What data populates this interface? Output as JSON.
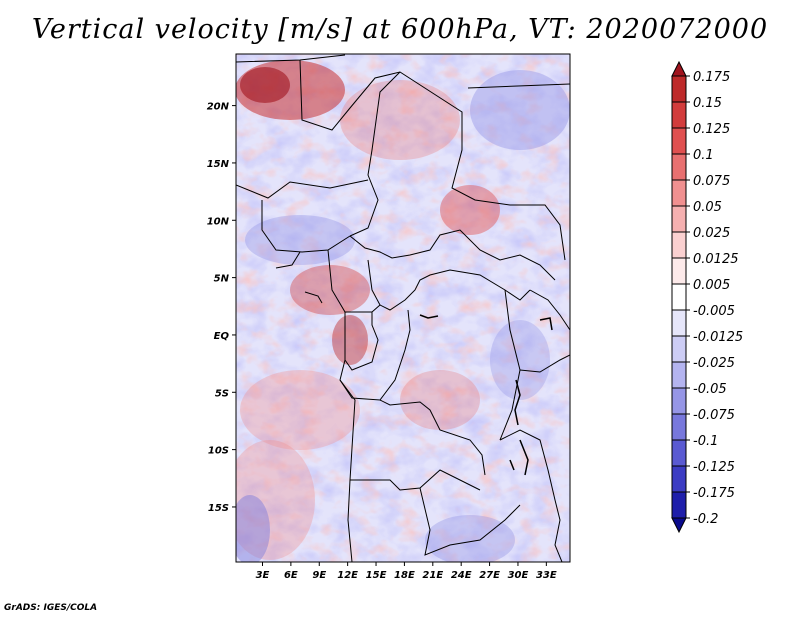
{
  "title": "Vertical velocity [m/s] at 600hPa, VT: 2020072000",
  "credit": "GrADS: IGES/COLA",
  "map": {
    "lat_labels": [
      "20N",
      "15N",
      "10N",
      "5N",
      "EQ",
      "5S",
      "10S",
      "15S"
    ],
    "lon_labels": [
      "3E",
      "6E",
      "9E",
      "12E",
      "15E",
      "18E",
      "21E",
      "24E",
      "27E",
      "30E",
      "33E"
    ],
    "lat_values": [
      20,
      15,
      10,
      5,
      0,
      -5,
      -10,
      -15
    ],
    "lon_values": [
      3,
      6,
      9,
      12,
      15,
      18,
      21,
      24,
      27,
      30,
      33
    ],
    "lon_range": [
      0.2,
      35.5
    ],
    "lat_range": [
      -19.8,
      24.5
    ]
  },
  "colorbar": {
    "labels": [
      "0.175",
      "0.15",
      "0.125",
      "0.1",
      "0.075",
      "0.05",
      "0.025",
      "0.0125",
      "0.005",
      "-0.005",
      "-0.0125",
      "-0.025",
      "-0.05",
      "-0.075",
      "-0.1",
      "-0.125",
      "-0.175",
      "-0.2"
    ],
    "colors": [
      "#a0141e",
      "#be2a2a",
      "#d23c3c",
      "#e05050",
      "#e87070",
      "#f09090",
      "#f5b0b0",
      "#fad0d0",
      "#fdeaea",
      "#ffffff",
      "#e6e6fa",
      "#cdcdf5",
      "#b4b4f0",
      "#9696e6",
      "#7878dc",
      "#5a5ad2",
      "#3c3cc3",
      "#1e1eaa",
      "#0a0a8c"
    ]
  }
}
